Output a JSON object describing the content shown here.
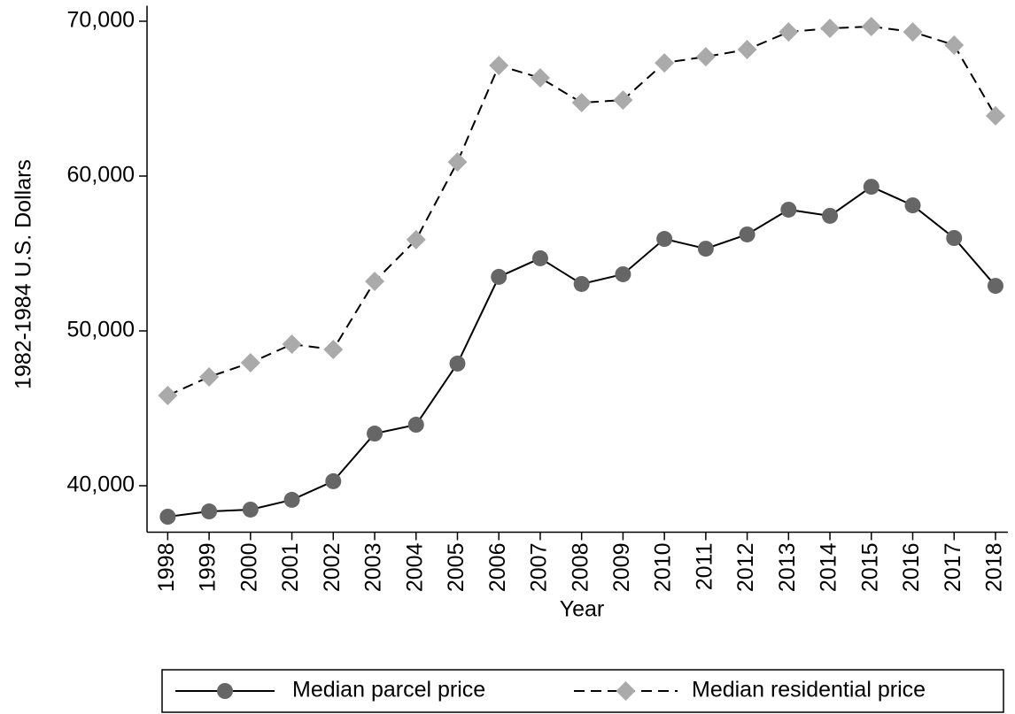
{
  "chart_data": {
    "type": "line",
    "x_label": "Year",
    "y_label": "1982-1984 U.S. Dollars",
    "x": [
      1998,
      1999,
      2000,
      2001,
      2002,
      2003,
      2004,
      2005,
      2006,
      2007,
      2008,
      2009,
      2010,
      2011,
      2012,
      2013,
      2014,
      2015,
      2016,
      2017,
      2018
    ],
    "series": [
      {
        "name": "Median parcel price",
        "color": "#666666",
        "line_color": "#000000",
        "line_style": "solid",
        "marker": "circle",
        "values": [
          38000,
          38340,
          38460,
          39090,
          40290,
          43370,
          43940,
          47890,
          53490,
          54690,
          53030,
          53660,
          55940,
          55310,
          56230,
          57830,
          57430,
          59310,
          58110,
          56000,
          52910
        ]
      },
      {
        "name": "Median residential price",
        "color": "#aaaaaa",
        "line_color": "#000000",
        "line_style": "dashed",
        "marker": "diamond",
        "values": [
          45830,
          47030,
          47940,
          49140,
          48800,
          53200,
          55890,
          60910,
          67140,
          66340,
          64740,
          64910,
          67310,
          67710,
          68170,
          69310,
          69540,
          69660,
          69310,
          68460,
          63890
        ]
      }
    ],
    "xlim": [
      1997.5,
      2018.3
    ],
    "xticks": [
      1998,
      1999,
      2000,
      2001,
      2002,
      2003,
      2004,
      2005,
      2006,
      2007,
      2008,
      2009,
      2010,
      2011,
      2012,
      2013,
      2014,
      2015,
      2016,
      2017,
      2018
    ],
    "ylim": [
      37000,
      71000
    ],
    "yticks": [
      {
        "value": 40000,
        "label": "40,000"
      },
      {
        "value": 50000,
        "label": "50,000"
      },
      {
        "value": 60000,
        "label": "60,000"
      },
      {
        "value": 70000,
        "label": "70,000"
      }
    ],
    "grid": false,
    "legend": "bottom"
  }
}
